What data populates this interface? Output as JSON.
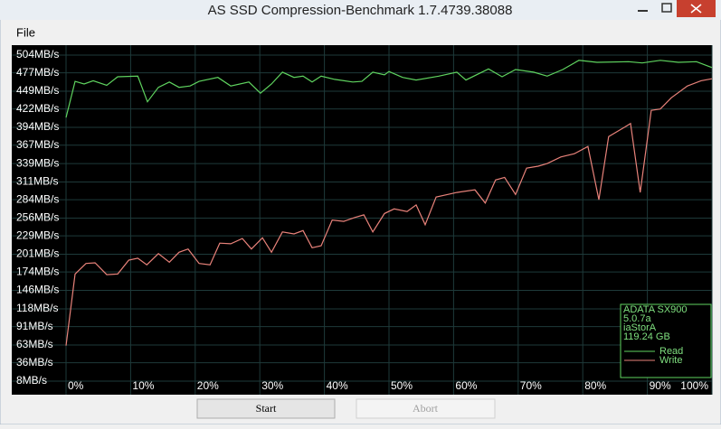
{
  "window": {
    "title": "AS SSD Compression-Benchmark 1.7.4739.38088"
  },
  "menu": [
    "File"
  ],
  "buttons": {
    "start": "Start",
    "abort": "Abort"
  },
  "chart_data": {
    "type": "line",
    "grid": true,
    "xlim": [
      0,
      100
    ],
    "ylim": [
      -12.6,
      519.1
    ],
    "xticks": [
      {
        "value": 0,
        "label": "0%"
      },
      {
        "value": 10,
        "label": "10%"
      },
      {
        "value": 20,
        "label": "20%"
      },
      {
        "value": 30,
        "label": "30%"
      },
      {
        "value": 40,
        "label": "40%"
      },
      {
        "value": 50,
        "label": "50%"
      },
      {
        "value": 60,
        "label": "60%"
      },
      {
        "value": 70,
        "label": "70%"
      },
      {
        "value": 80,
        "label": "80%"
      },
      {
        "value": 90,
        "label": "90%"
      },
      {
        "value": 100,
        "label": "100%"
      }
    ],
    "yticks": [
      {
        "value": 504,
        "label": "504MB/s"
      },
      {
        "value": 477,
        "label": "477MB/s"
      },
      {
        "value": 449,
        "label": "449MB/s"
      },
      {
        "value": 422,
        "label": "422MB/s"
      },
      {
        "value": 394,
        "label": "394MB/s"
      },
      {
        "value": 367,
        "label": "367MB/s"
      },
      {
        "value": 339,
        "label": "339MB/s"
      },
      {
        "value": 311,
        "label": "311MB/s"
      },
      {
        "value": 284,
        "label": "284MB/s"
      },
      {
        "value": 256,
        "label": "256MB/s"
      },
      {
        "value": 229,
        "label": "229MB/s"
      },
      {
        "value": 201,
        "label": "201MB/s"
      },
      {
        "value": 174,
        "label": "174MB/s"
      },
      {
        "value": 146,
        "label": "146MB/s"
      },
      {
        "value": 118,
        "label": "118MB/s"
      },
      {
        "value": 91,
        "label": "91MB/s"
      },
      {
        "value": 63,
        "label": "63MB/s"
      },
      {
        "value": 36,
        "label": "36MB/s"
      },
      {
        "value": 8,
        "label": "8MB/s"
      }
    ],
    "device_info": [
      "ADATA SX900",
      "5.0.7a",
      "iaStorA",
      "119.24 GB"
    ],
    "series": [
      {
        "name": "Read",
        "color": "#5fd35f",
        "x": [
          0,
          1.4,
          2.8,
          4.2,
          6.3,
          8.0,
          11.1,
          12.6,
          14.3,
          16.0,
          17.5,
          19.2,
          20.6,
          23.5,
          25.5,
          28.3,
          30.1,
          31.8,
          33.5,
          35.3,
          36.7,
          38.1,
          39.5,
          41.6,
          44.4,
          45.8,
          47.5,
          49.3,
          50.0,
          52.1,
          54.2,
          57.7,
          60.5,
          61.9,
          65.4,
          67.5,
          69.6,
          72.4,
          74.5,
          76.9,
          79.4,
          82.2,
          87.1,
          89.2,
          92.0,
          94.8,
          97.6,
          100
        ],
        "values": [
          409,
          464,
          460,
          465,
          458,
          471,
          472,
          433,
          455,
          463,
          455,
          457,
          464,
          470,
          457,
          463,
          446,
          460,
          478,
          470,
          472,
          463,
          472,
          467,
          463,
          464,
          478,
          474,
          479,
          470,
          466,
          472,
          478,
          466,
          483,
          471,
          482,
          478,
          472,
          482,
          496,
          493,
          494,
          492,
          496,
          493,
          494,
          485
        ]
      },
      {
        "name": "Write",
        "color": "#e8827a",
        "x": [
          0,
          1.4,
          3.1,
          4.5,
          6.3,
          8.0,
          9.7,
          11.1,
          12.5,
          14.3,
          16.0,
          17.5,
          18.9,
          20.6,
          22.3,
          23.8,
          25.5,
          27.3,
          28.7,
          30.4,
          31.8,
          33.5,
          35.3,
          36.7,
          38.1,
          39.5,
          41.2,
          43.0,
          44.7,
          46.1,
          47.5,
          49.3,
          50.8,
          52.8,
          54.2,
          55.6,
          57.3,
          59.1,
          60.5,
          63.3,
          64.9,
          66.5,
          67.9,
          69.6,
          71.3,
          73.1,
          74.5,
          76.6,
          78.7,
          80.8,
          82.5,
          84.0,
          86.4,
          87.4,
          88.9,
          90.6,
          92.0,
          93.7,
          96.2,
          98.3,
          100
        ],
        "values": [
          62,
          171,
          187,
          188,
          170,
          171,
          192,
          195,
          185,
          202,
          189,
          204,
          209,
          187,
          185,
          218,
          217,
          225,
          209,
          226,
          204,
          235,
          232,
          237,
          211,
          214,
          253,
          251,
          257,
          261,
          235,
          263,
          270,
          266,
          276,
          246,
          288,
          292,
          295,
          299,
          279,
          314,
          318,
          292,
          332,
          335,
          339,
          349,
          354,
          365,
          284,
          380,
          394,
          400,
          295,
          420,
          422,
          439,
          457,
          465,
          468
        ]
      }
    ]
  }
}
